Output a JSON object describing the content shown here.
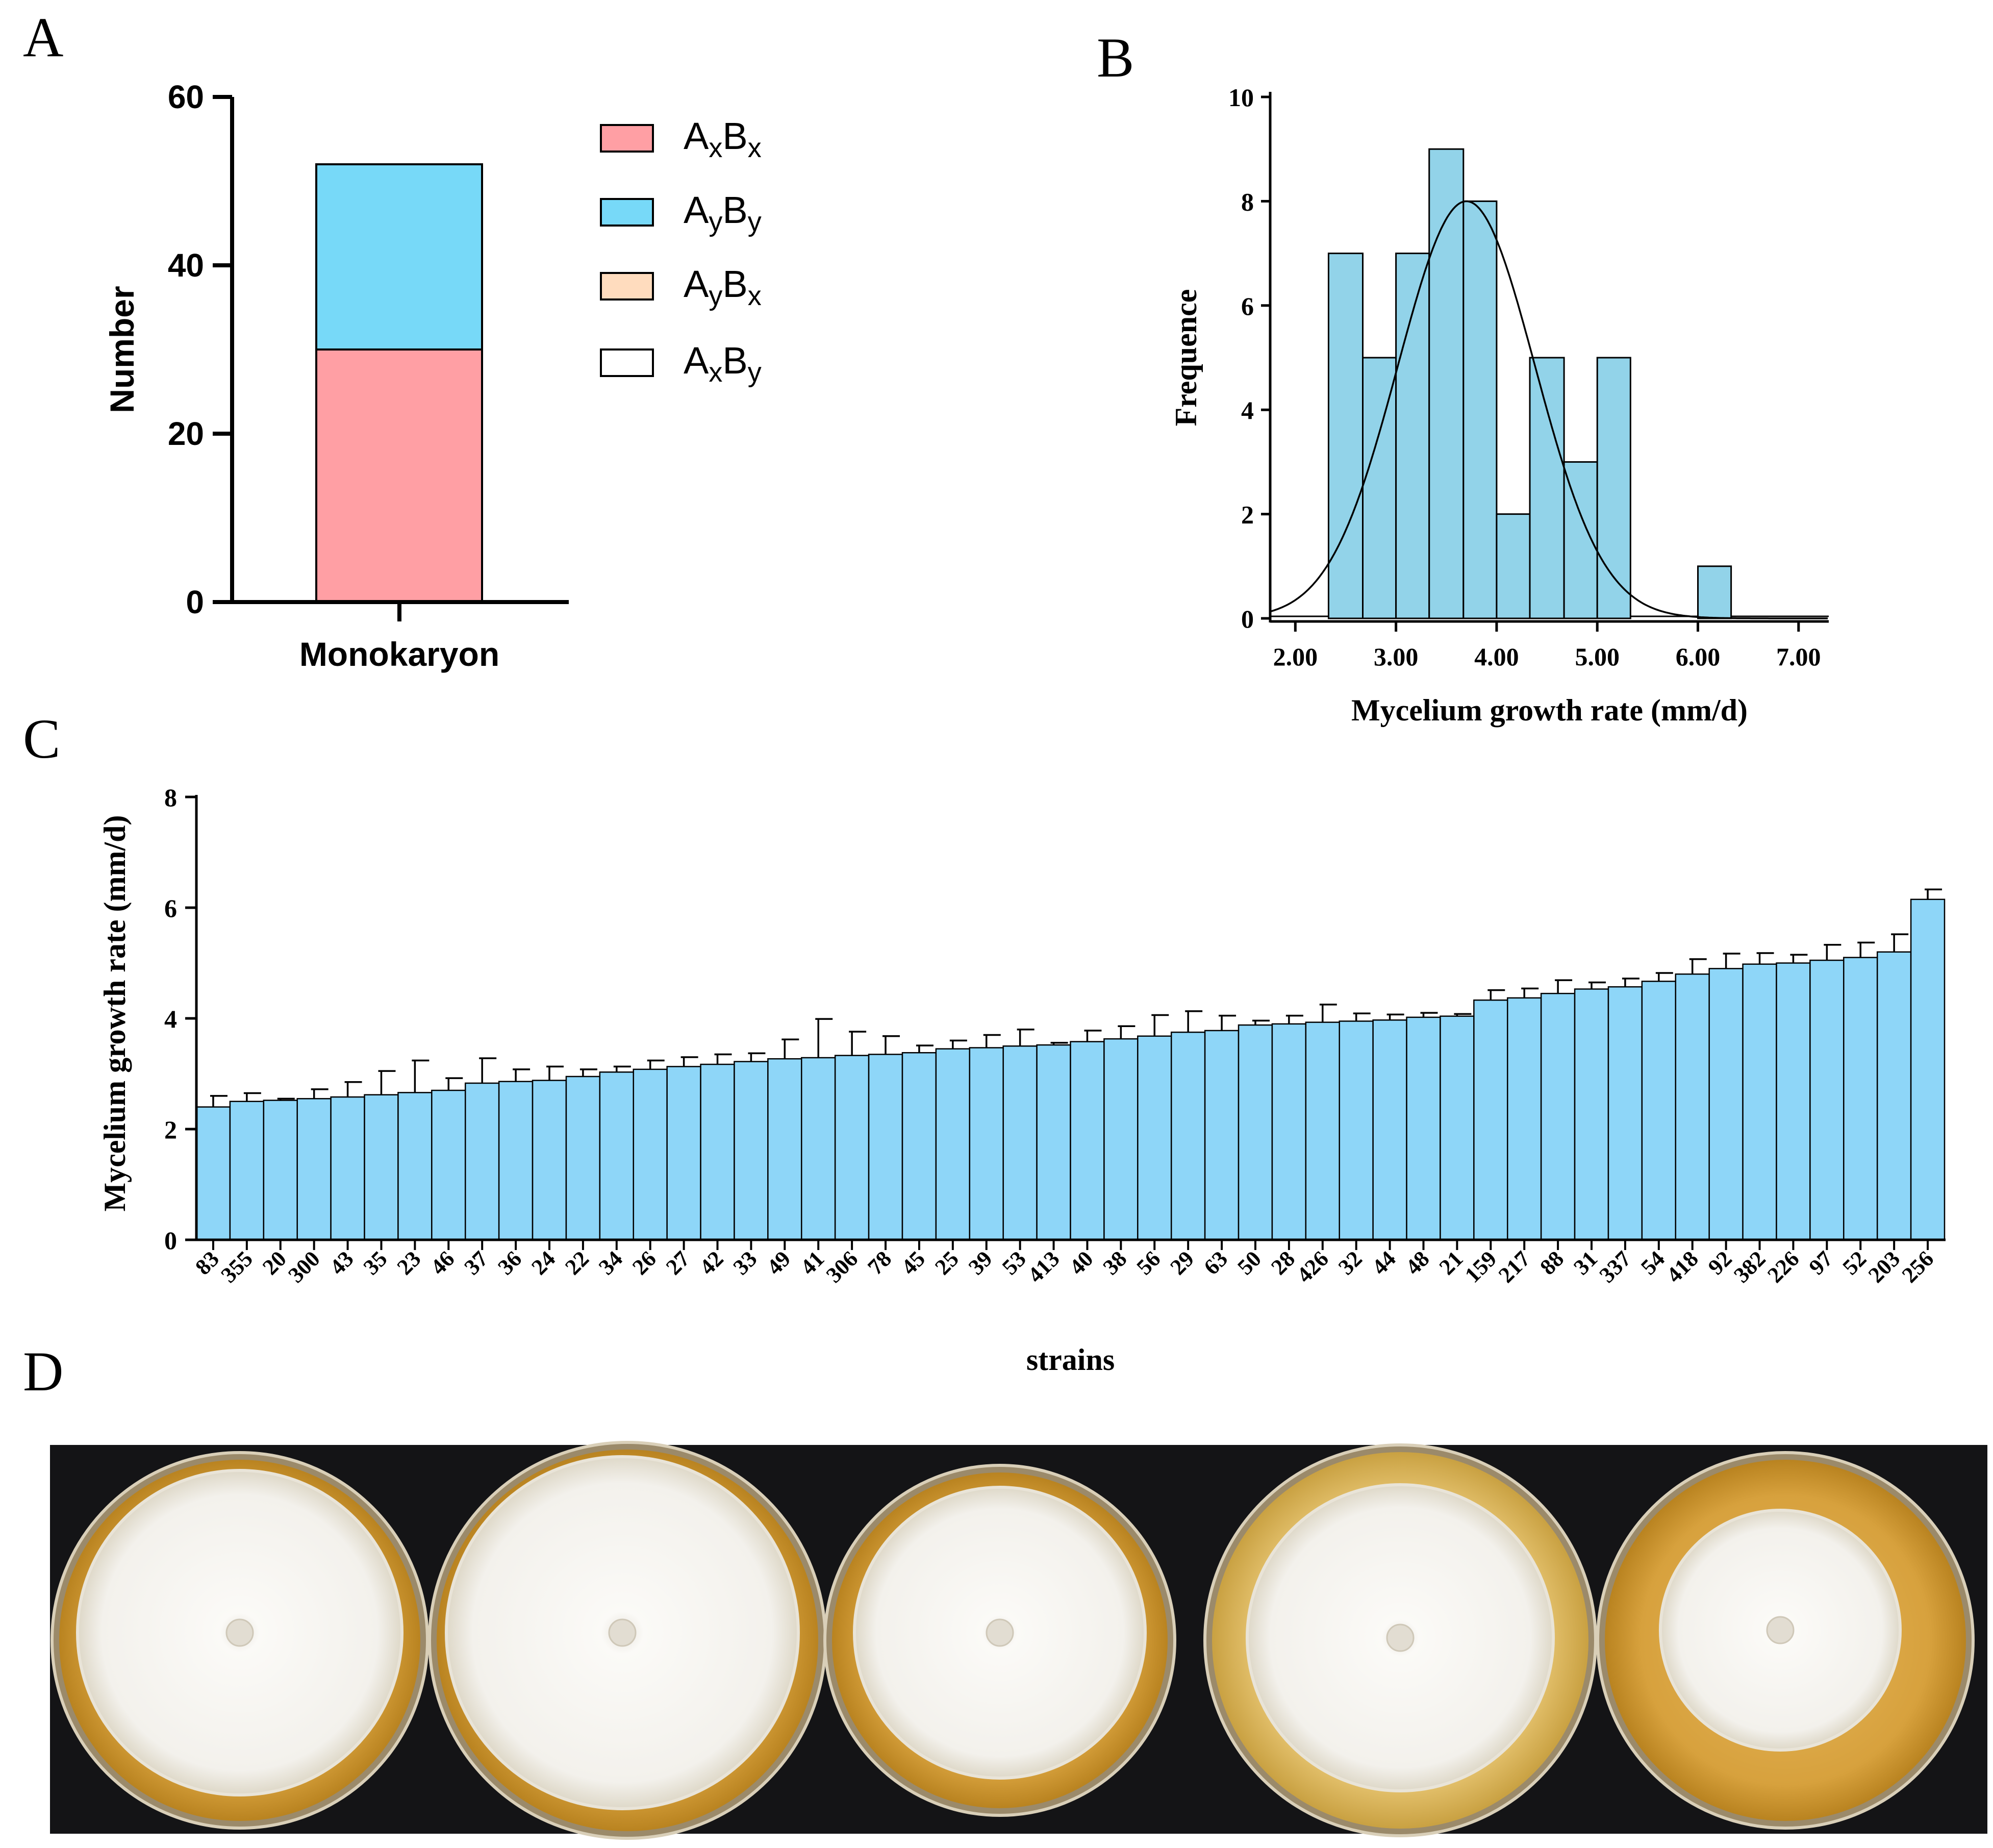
{
  "panels": {
    "a": {
      "letter": "A"
    },
    "b": {
      "letter": "B"
    },
    "c": {
      "letter": "C"
    },
    "d": {
      "letter": "D"
    }
  },
  "colors": {
    "AxBx": "#ff9fa4",
    "AyBy": "#77d9f8",
    "AyBx": "#ffdcbe",
    "AxBy": "#ffffff",
    "hist": "#92d3e9",
    "bars": "#8ed6f8",
    "dish_bg": "#141416",
    "agar": "#d9a23a",
    "mycelium": "#f6f5f1"
  },
  "chart_data": [
    {
      "id": "A",
      "type": "bar",
      "stacked": true,
      "categories": [
        "Monokaryon"
      ],
      "series": [
        {
          "name": "AxBx",
          "base": "A",
          "sub1": "x",
          "base2": "B",
          "sub2": "x",
          "values": [
            30
          ]
        },
        {
          "name": "AyBy",
          "base": "A",
          "sub1": "y",
          "base2": "B",
          "sub2": "y",
          "values": [
            22
          ]
        },
        {
          "name": "AyBx",
          "base": "A",
          "sub1": "y",
          "base2": "B",
          "sub2": "x",
          "values": [
            0
          ]
        },
        {
          "name": "AxBy",
          "base": "A",
          "sub1": "x",
          "base2": "B",
          "sub2": "y",
          "values": [
            0
          ]
        }
      ],
      "ylabel": "Number",
      "ylim": [
        0,
        60
      ],
      "yticks": [
        "0",
        "20",
        "40",
        "60"
      ],
      "legend": "right"
    },
    {
      "id": "B",
      "type": "histogram",
      "bin_edges": [
        2.33,
        2.67,
        3.0,
        3.33,
        3.67,
        4.0,
        4.33,
        4.67,
        5.0,
        5.33,
        5.67,
        6.0,
        6.33
      ],
      "counts": [
        7,
        5,
        7,
        9,
        8,
        2,
        5,
        3,
        5,
        0,
        0,
        1
      ],
      "normal_fit": {
        "mean": 3.7,
        "sd": 0.68,
        "peak": 8
      },
      "xlabel": "Mycelium growth rate (mm/d)",
      "ylabel": "Frequence",
      "xlim": [
        1.75,
        7.3
      ],
      "ylim": [
        0,
        10
      ],
      "xticks": [
        "2.00",
        "3.00",
        "4.00",
        "5.00",
        "6.00",
        "7.00"
      ],
      "yticks": [
        "0",
        "2",
        "4",
        "6",
        "8",
        "10"
      ]
    },
    {
      "id": "C",
      "type": "bar",
      "categories": [
        "83",
        "355",
        "20",
        "300",
        "43",
        "35",
        "23",
        "46",
        "37",
        "36",
        "24",
        "22",
        "34",
        "26",
        "27",
        "42",
        "33",
        "49",
        "41",
        "306",
        "78",
        "45",
        "25",
        "39",
        "53",
        "413",
        "40",
        "38",
        "56",
        "29",
        "63",
        "50",
        "28",
        "426",
        "32",
        "44",
        "48",
        "21",
        "159",
        "217",
        "88",
        "31",
        "337",
        "54",
        "418",
        "92",
        "382",
        "226",
        "97",
        "52",
        "203",
        "256"
      ],
      "values": [
        2.4,
        2.5,
        2.52,
        2.55,
        2.58,
        2.62,
        2.66,
        2.7,
        2.83,
        2.86,
        2.88,
        2.95,
        3.03,
        3.08,
        3.13,
        3.17,
        3.22,
        3.27,
        3.29,
        3.33,
        3.35,
        3.38,
        3.45,
        3.47,
        3.5,
        3.52,
        3.58,
        3.63,
        3.68,
        3.75,
        3.78,
        3.88,
        3.9,
        3.93,
        3.95,
        3.97,
        4.02,
        4.04,
        4.33,
        4.37,
        4.45,
        4.53,
        4.57,
        4.67,
        4.8,
        4.9,
        4.98,
        5.0,
        5.05,
        5.1,
        5.2,
        6.15
      ],
      "errors": [
        0.2,
        0.15,
        0.03,
        0.17,
        0.27,
        0.43,
        0.58,
        0.22,
        0.45,
        0.22,
        0.25,
        0.13,
        0.1,
        0.16,
        0.17,
        0.18,
        0.15,
        0.35,
        0.7,
        0.43,
        0.33,
        0.13,
        0.15,
        0.23,
        0.3,
        0.04,
        0.2,
        0.23,
        0.38,
        0.38,
        0.27,
        0.08,
        0.15,
        0.32,
        0.14,
        0.1,
        0.08,
        0.04,
        0.18,
        0.17,
        0.24,
        0.12,
        0.15,
        0.15,
        0.27,
        0.27,
        0.2,
        0.15,
        0.28,
        0.27,
        0.32,
        0.18
      ],
      "xlabel": "strains",
      "ylabel": "Mycelium growth rate (mm/d)",
      "ylim": [
        0,
        8
      ],
      "yticks": [
        "0",
        "2",
        "4",
        "6",
        "8"
      ]
    }
  ]
}
